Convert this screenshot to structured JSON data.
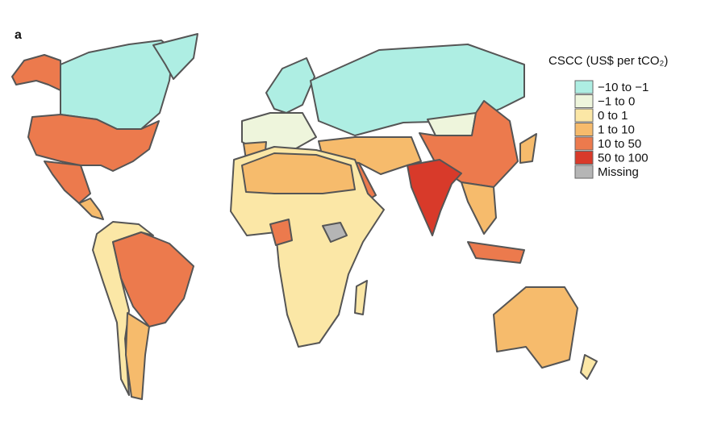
{
  "panel_label": "a",
  "legend": {
    "title": "CSCC (US$ per tCO₂)",
    "items": [
      {
        "label": "−10 to −1",
        "color": "#aeeee3"
      },
      {
        "label": "−1 to 0",
        "color": "#eef5dc"
      },
      {
        "label": "0 to 1",
        "color": "#fbe7a6"
      },
      {
        "label": "1 to 10",
        "color": "#f6bb6c"
      },
      {
        "label": "10 to 50",
        "color": "#ec7a4d"
      },
      {
        "label": "50 to 100",
        "color": "#d83a2a"
      },
      {
        "label": "Missing",
        "color": "#b5b5b5"
      }
    ]
  }
}
